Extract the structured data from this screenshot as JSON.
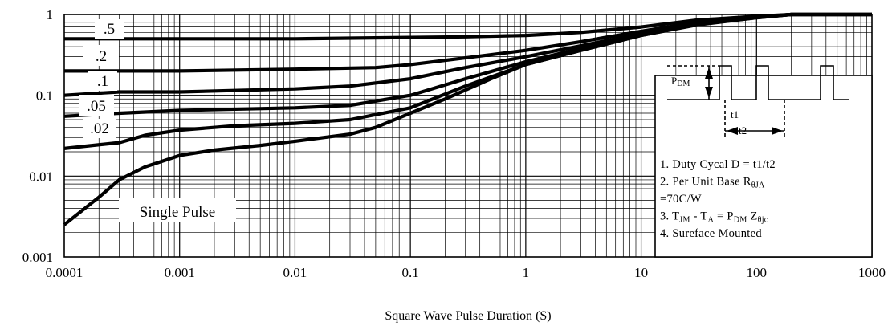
{
  "chart_data": {
    "type": "line",
    "title": "",
    "xlabel": "Square Wave Pulse Duration (S)",
    "ylabel": "",
    "xscale": "log",
    "yscale": "log",
    "xlim": [
      0.0001,
      1000
    ],
    "ylim": [
      0.001,
      1
    ],
    "grid": true,
    "x_tick_labels": [
      "0.0001",
      "0.001",
      "0.01",
      "0.1",
      "1",
      "10",
      "100",
      "1000"
    ],
    "y_tick_labels": [
      "1",
      "0.1",
      "0.01",
      "0.001"
    ],
    "series": [
      {
        "name": ".5",
        "points": [
          [
            0.0001,
            0.5
          ],
          [
            0.001,
            0.5
          ],
          [
            0.01,
            0.5
          ],
          [
            0.1,
            0.52
          ],
          [
            0.3,
            0.53
          ],
          [
            1,
            0.55
          ],
          [
            3,
            0.6
          ],
          [
            10,
            0.7
          ],
          [
            30,
            0.85
          ],
          [
            100,
            0.95
          ],
          [
            200,
            1.0
          ],
          [
            1000,
            1.0
          ]
        ]
      },
      {
        "name": ".2",
        "points": [
          [
            0.0001,
            0.2
          ],
          [
            0.001,
            0.2
          ],
          [
            0.01,
            0.21
          ],
          [
            0.05,
            0.22
          ],
          [
            0.1,
            0.24
          ],
          [
            0.3,
            0.29
          ],
          [
            1,
            0.36
          ],
          [
            3,
            0.46
          ],
          [
            10,
            0.62
          ],
          [
            30,
            0.8
          ],
          [
            100,
            0.93
          ],
          [
            200,
            1.0
          ],
          [
            1000,
            1.0
          ]
        ]
      },
      {
        "name": ".1",
        "points": [
          [
            0.0001,
            0.1
          ],
          [
            0.0003,
            0.11
          ],
          [
            0.001,
            0.11
          ],
          [
            0.01,
            0.12
          ],
          [
            0.03,
            0.13
          ],
          [
            0.1,
            0.16
          ],
          [
            0.3,
            0.22
          ],
          [
            1,
            0.3
          ],
          [
            3,
            0.41
          ],
          [
            10,
            0.58
          ],
          [
            30,
            0.78
          ],
          [
            100,
            0.92
          ],
          [
            200,
            1.0
          ],
          [
            1000,
            1.0
          ]
        ]
      },
      {
        "name": ".05",
        "points": [
          [
            0.0001,
            0.055
          ],
          [
            0.0003,
            0.06
          ],
          [
            0.001,
            0.065
          ],
          [
            0.01,
            0.07
          ],
          [
            0.03,
            0.075
          ],
          [
            0.1,
            0.1
          ],
          [
            0.3,
            0.16
          ],
          [
            1,
            0.26
          ],
          [
            3,
            0.38
          ],
          [
            10,
            0.56
          ],
          [
            30,
            0.76
          ],
          [
            100,
            0.92
          ],
          [
            200,
            1.0
          ],
          [
            1000,
            1.0
          ]
        ]
      },
      {
        "name": ".02",
        "points": [
          [
            0.0001,
            0.022
          ],
          [
            0.0003,
            0.026
          ],
          [
            0.0005,
            0.032
          ],
          [
            0.001,
            0.037
          ],
          [
            0.003,
            0.042
          ],
          [
            0.01,
            0.045
          ],
          [
            0.03,
            0.05
          ],
          [
            0.1,
            0.07
          ],
          [
            0.3,
            0.13
          ],
          [
            1,
            0.24
          ],
          [
            3,
            0.36
          ],
          [
            10,
            0.55
          ],
          [
            30,
            0.75
          ],
          [
            100,
            0.91
          ],
          [
            200,
            1.0
          ],
          [
            1000,
            1.0
          ]
        ]
      },
      {
        "name": "Single Pulse",
        "points": [
          [
            0.0001,
            0.0025
          ],
          [
            0.0002,
            0.0055
          ],
          [
            0.0003,
            0.009
          ],
          [
            0.0005,
            0.013
          ],
          [
            0.001,
            0.018
          ],
          [
            0.002,
            0.021
          ],
          [
            0.005,
            0.024
          ],
          [
            0.01,
            0.027
          ],
          [
            0.03,
            0.033
          ],
          [
            0.05,
            0.04
          ],
          [
            0.1,
            0.06
          ],
          [
            0.2,
            0.09
          ],
          [
            0.5,
            0.16
          ],
          [
            1,
            0.24
          ],
          [
            3,
            0.36
          ],
          [
            10,
            0.55
          ],
          [
            30,
            0.74
          ],
          [
            100,
            0.91
          ],
          [
            200,
            1.0
          ],
          [
            1000,
            1.0
          ]
        ]
      }
    ],
    "inset": {
      "pdm_label": "P",
      "pdm_sub": "DM",
      "t1_label": "t1",
      "t2_label": "t2",
      "notes": [
        {
          "parts": [
            [
              "1. Duty Cycal D = t1/t2",
              ""
            ]
          ]
        },
        {
          "parts": [
            [
              "2. Per Unit Base R",
              ""
            ],
            [
              "θJA",
              "sub"
            ]
          ]
        },
        {
          "parts": [
            [
              "=70C/W",
              ""
            ]
          ]
        },
        {
          "parts": [
            [
              "3. T",
              ""
            ],
            [
              "JM",
              "sub"
            ],
            [
              " - T",
              ""
            ],
            [
              "A",
              "sub"
            ],
            [
              " = P",
              ""
            ],
            [
              "DM",
              "sub"
            ],
            [
              " Z",
              ""
            ],
            [
              "θjc",
              "sub"
            ]
          ]
        },
        {
          "parts": [
            [
              "4. Sureface Mounted",
              ""
            ]
          ]
        }
      ]
    }
  }
}
